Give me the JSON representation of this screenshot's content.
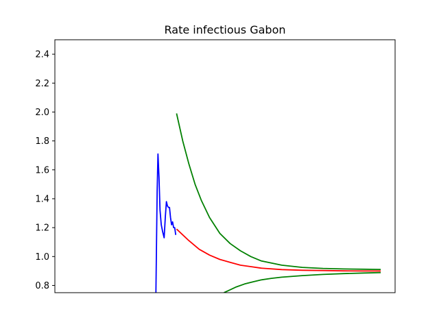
{
  "chart_data": {
    "type": "line",
    "title": "Rate infectious Gabon",
    "xlabel": "",
    "ylabel": "",
    "xlim": [
      0,
      165
    ],
    "ylim": [
      0.75,
      2.5
    ],
    "yticks": [
      0.8,
      1.0,
      1.2,
      1.4,
      1.6,
      1.8,
      2.0,
      2.2,
      2.4
    ],
    "ytick_labels": [
      "0.8",
      "1.0",
      "1.2",
      "1.4",
      "1.6",
      "1.8",
      "2.0",
      "2.2",
      "2.4"
    ],
    "show_x_ticks": false,
    "grid": false,
    "series": [
      {
        "color": "#0000ff",
        "x": [
          49.0,
          49.3,
          49.6,
          50.0,
          50.5,
          51.0,
          51.6,
          52.3,
          53.0,
          53.6,
          54.1,
          54.6,
          55.1,
          55.6,
          56.1,
          56.6,
          57.1,
          57.6,
          58.1,
          58.6
        ],
        "y": [
          0.75,
          1.1,
          1.45,
          1.71,
          1.55,
          1.32,
          1.22,
          1.17,
          1.13,
          1.28,
          1.38,
          1.35,
          1.34,
          1.34,
          1.27,
          1.22,
          1.24,
          1.2,
          1.2,
          1.15
        ]
      },
      {
        "color": "#ff0000",
        "x": [
          59,
          65,
          70,
          75,
          80,
          85,
          90,
          95,
          100,
          110,
          120,
          130,
          140,
          150,
          158
        ],
        "y": [
          1.19,
          1.11,
          1.05,
          1.01,
          0.98,
          0.96,
          0.94,
          0.93,
          0.92,
          0.91,
          0.905,
          0.903,
          0.901,
          0.9,
          0.9
        ]
      },
      {
        "color": "#008000",
        "x": [
          59,
          62,
          65,
          68,
          71,
          75,
          80,
          85,
          90,
          95,
          100,
          110,
          120,
          130,
          140,
          150,
          158
        ],
        "y": [
          1.99,
          1.8,
          1.64,
          1.5,
          1.39,
          1.27,
          1.16,
          1.09,
          1.04,
          1.0,
          0.97,
          0.94,
          0.925,
          0.918,
          0.914,
          0.912,
          0.911
        ]
      },
      {
        "color": "#008000",
        "x": [
          82,
          85,
          88,
          92,
          96,
          100,
          105,
          110,
          120,
          130,
          140,
          150,
          158
        ],
        "y": [
          0.75,
          0.77,
          0.79,
          0.81,
          0.825,
          0.838,
          0.849,
          0.857,
          0.868,
          0.876,
          0.882,
          0.886,
          0.889
        ]
      }
    ]
  }
}
